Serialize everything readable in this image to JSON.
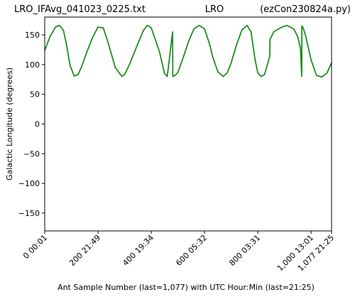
{
  "chart_data": {
    "type": "line",
    "title_left": "LRO_IFAvg_041023_0225.txt",
    "title_center": "LRO",
    "title_right": "(ezCon230824a.py)",
    "xlabel": "Ant Sample Number (last=1,077) with UTC Hour:Min (last=21:25)",
    "ylabel": "Galactic Longitude (degrees)",
    "xlim": [
      0,
      1077
    ],
    "ylim": [
      -180,
      180
    ],
    "grid": false,
    "x_ticks": [
      {
        "value": 0,
        "label": "0  00:01"
      },
      {
        "value": 200,
        "label": "200  21:49"
      },
      {
        "value": 400,
        "label": "400  19:34"
      },
      {
        "value": 600,
        "label": "600  05:32"
      },
      {
        "value": 800,
        "label": "800  03:31"
      },
      {
        "value": 1000,
        "label": "1,000  13:01"
      },
      {
        "value": 1077,
        "label": "1,077  21:25"
      }
    ],
    "y_ticks": [
      150,
      100,
      50,
      0,
      -50,
      -100,
      -150
    ],
    "y_tick_labels": [
      "150",
      "100",
      "50",
      "0",
      "−50",
      "−100",
      "−150"
    ],
    "series": [
      {
        "color": "#138a13",
        "x": [
          0,
          20,
          40,
          55,
          70,
          82,
          95,
          110,
          125,
          140,
          150,
          165,
          180,
          200,
          220,
          240,
          265,
          290,
          300,
          320,
          345,
          370,
          385,
          400,
          430,
          450,
          460,
          480,
          481,
          490,
          500,
          520,
          540,
          560,
          580,
          600,
          620,
          630,
          650,
          670,
          685,
          700,
          720,
          740,
          760,
          775,
          780,
          790,
          800,
          812,
          825,
          840,
          845,
          845.5,
          860,
          870,
          890,
          910,
          935,
          950,
          960,
          965,
          965.5,
          970,
          980,
          1000,
          1020,
          1040,
          1060,
          1077
        ],
        "y": [
          124,
          147,
          163,
          166,
          158,
          133,
          99,
          81,
          83,
          98,
          111,
          129,
          146,
          163,
          162,
          134,
          95,
          80,
          83,
          102,
          130,
          157,
          166,
          162,
          123,
          85,
          80,
          155,
          80,
          82,
          87,
          112,
          139,
          160,
          166,
          160,
          133,
          114,
          88,
          80,
          86,
          103,
          133,
          158,
          166,
          155,
          138,
          108,
          86,
          80,
          83,
          106,
          115,
          142,
          155,
          158,
          163,
          166,
          160,
          147,
          128,
          80,
          165,
          162,
          148,
          108,
          82,
          79,
          86,
          103
        ]
      }
    ]
  }
}
